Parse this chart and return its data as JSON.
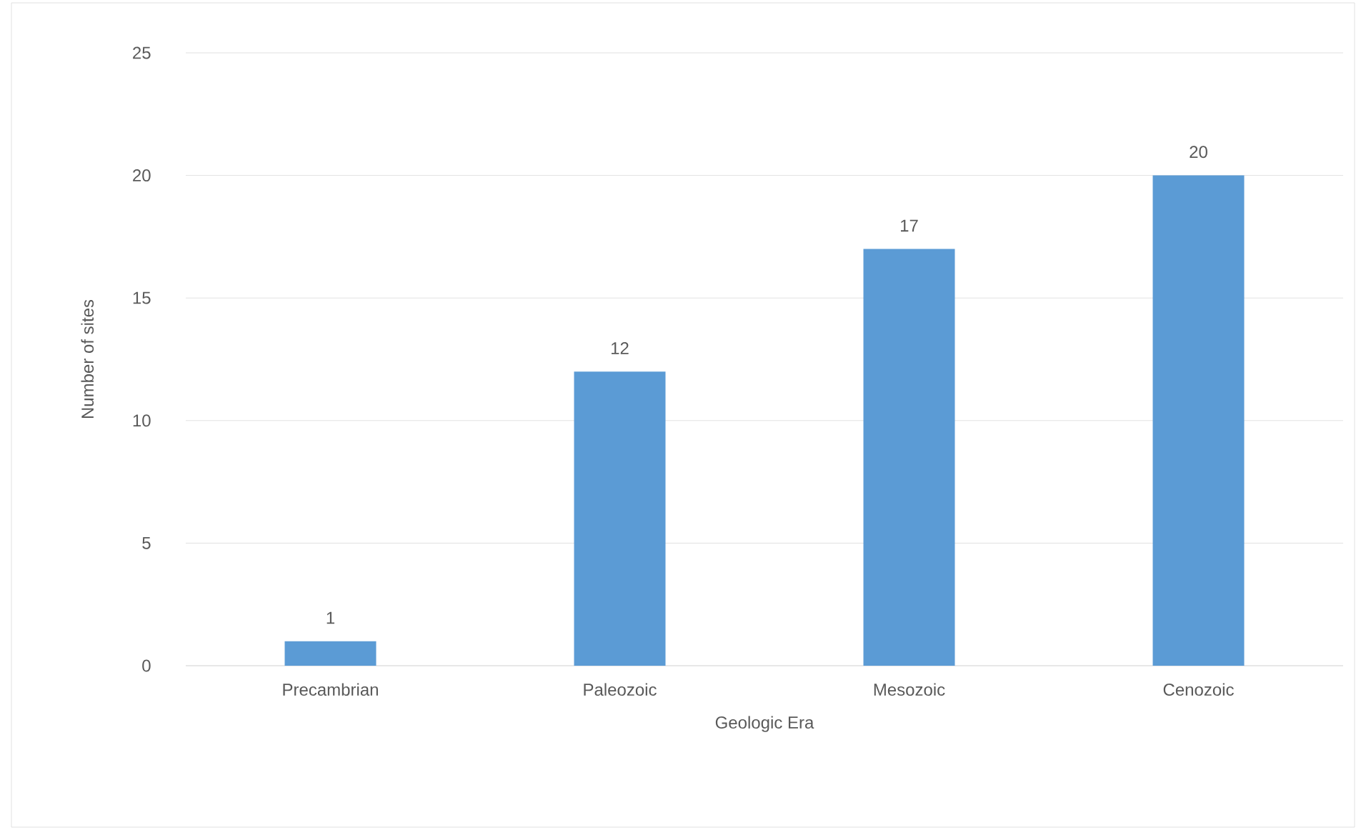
{
  "chart_data": {
    "type": "bar",
    "xlabel": "Geologic Era",
    "ylabel": "Number of sites",
    "categories": [
      "Precambrian",
      "Paleozoic",
      "Mesozoic",
      "Cenozoic"
    ],
    "values": [
      1,
      12,
      17,
      20
    ],
    "color": "#5b9bd5",
    "ylim": [
      0,
      25
    ],
    "yticks": [
      0,
      5,
      10,
      15,
      20,
      25
    ],
    "grid": "y",
    "data_labels": true
  }
}
